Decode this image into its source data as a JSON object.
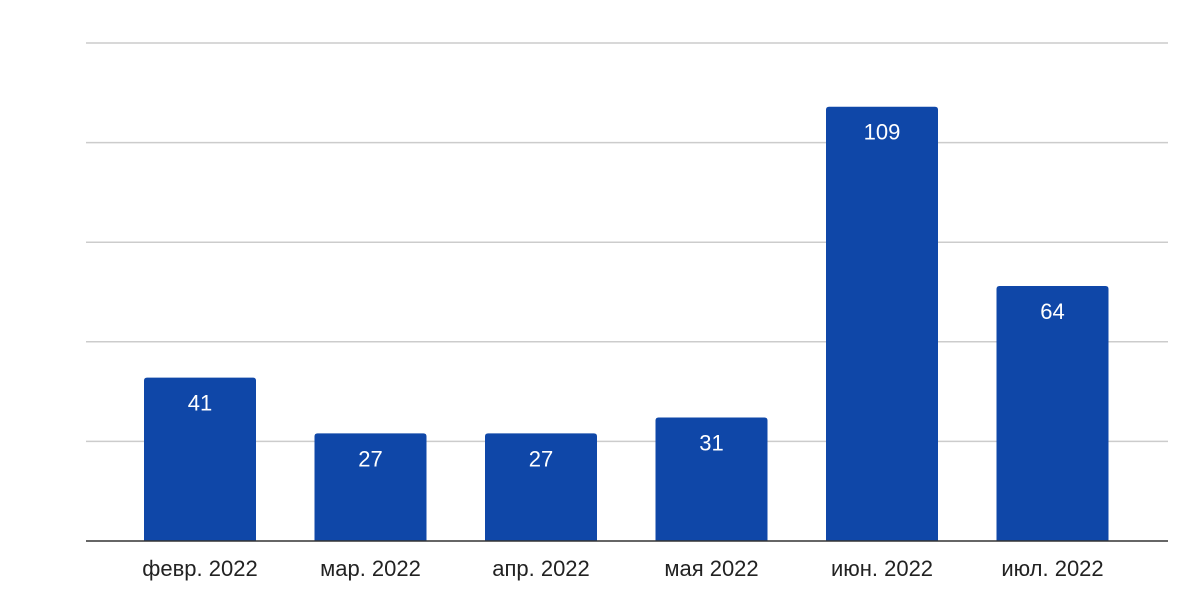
{
  "chart_data": {
    "type": "bar",
    "categories": [
      "февр. 2022",
      "мар. 2022",
      "апр. 2022",
      "мая 2022",
      "июн. 2022",
      "июл. 2022"
    ],
    "series": [
      {
        "values": [
          41,
          27,
          27,
          31,
          109,
          64
        ]
      }
    ],
    "ylim": [
      0,
      125
    ],
    "y_gridlines": [
      25,
      50,
      75,
      100,
      125
    ],
    "y_tick_labels_shown": false,
    "grid": true,
    "data_labels": true,
    "legend": "none",
    "colors": {
      "bar": "#0f47a8",
      "grid": "#cccccc",
      "axis": "#333333",
      "label": "#ffffff"
    }
  }
}
